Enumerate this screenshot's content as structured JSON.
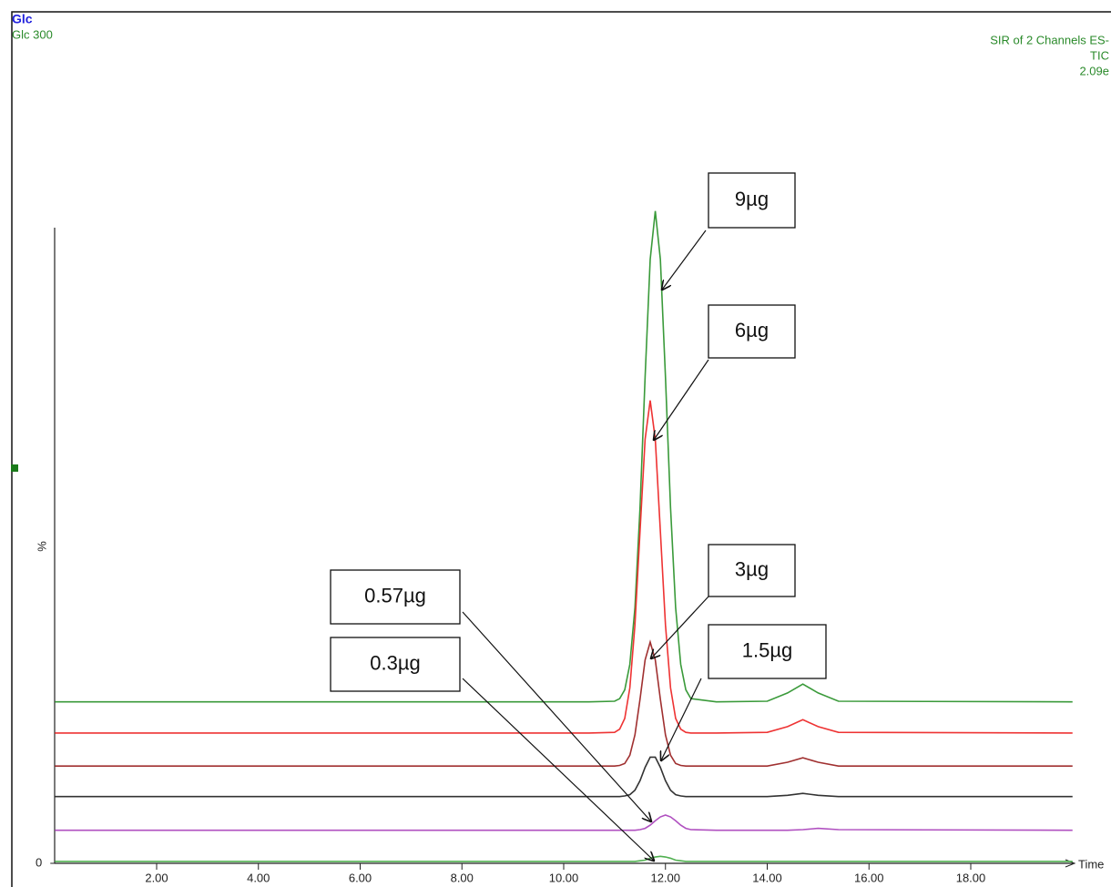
{
  "chart_data": {
    "type": "line",
    "header_left": [
      "Glc",
      "Glc 300"
    ],
    "header_right": [
      "SIR of 2 Channels ES-",
      "TIC",
      "2.09e"
    ],
    "ylabel": "%",
    "xlabel": "Time",
    "xlim": [
      0,
      20
    ],
    "ylim": [
      0,
      105
    ],
    "xticks": [
      {
        "value": 2,
        "label": "2.00"
      },
      {
        "value": 4,
        "label": "4.00"
      },
      {
        "value": 6,
        "label": "6.00"
      },
      {
        "value": 8,
        "label": "8.00"
      },
      {
        "value": 10,
        "label": "10.00"
      },
      {
        "value": 12,
        "label": "12.00"
      },
      {
        "value": 14,
        "label": "14.00"
      },
      {
        "value": 16,
        "label": "16.00"
      },
      {
        "value": 18,
        "label": "18.00"
      }
    ],
    "yticks": [
      0
    ],
    "x": [
      0,
      10.5,
      11.0,
      11.1,
      11.2,
      11.3,
      11.4,
      11.5,
      11.6,
      11.7,
      11.8,
      11.9,
      12.0,
      12.1,
      12.2,
      12.3,
      12.4,
      12.5,
      13.0,
      14.0,
      14.4,
      14.7,
      15.0,
      15.4,
      20
    ],
    "series": [
      {
        "color": "#3a9a3a",
        "values": [
          25.4,
          25.4,
          25.5,
          25.9,
          27.3,
          31.3,
          40.2,
          55.9,
          76.5,
          95.0,
          102.6,
          95.0,
          76.5,
          55.9,
          40.2,
          31.3,
          27.3,
          25.9,
          25.4,
          25.5,
          26.8,
          28.2,
          26.8,
          25.5,
          25.4
        ]
      },
      {
        "color": "#ee3333",
        "values": [
          20.5,
          20.5,
          20.6,
          21.1,
          22.8,
          27.6,
          37.5,
          52.2,
          66.7,
          72.8,
          66.7,
          52.2,
          37.5,
          27.6,
          22.8,
          21.1,
          20.6,
          20.5,
          20.5,
          20.6,
          21.5,
          22.6,
          21.5,
          20.6,
          20.5
        ]
      },
      {
        "color": "#a03030",
        "values": [
          15.3,
          15.3,
          15.3,
          15.4,
          15.7,
          17.0,
          20.2,
          25.8,
          32.0,
          34.8,
          32.0,
          25.8,
          20.2,
          17.0,
          15.7,
          15.4,
          15.3,
          15.3,
          15.3,
          15.3,
          15.9,
          16.6,
          15.9,
          15.3,
          15.3
        ]
      },
      {
        "color": "#333333",
        "values": [
          10.5,
          10.5,
          10.5,
          10.5,
          10.6,
          10.8,
          11.5,
          13.0,
          15.1,
          16.7,
          16.7,
          15.1,
          13.0,
          11.5,
          10.8,
          10.6,
          10.5,
          10.5,
          10.5,
          10.5,
          10.7,
          11.0,
          10.7,
          10.5,
          10.5
        ]
      },
      {
        "color": "#b050c0",
        "values": [
          5.2,
          5.2,
          5.2,
          5.2,
          5.2,
          5.2,
          5.2,
          5.3,
          5.5,
          6.0,
          6.7,
          7.3,
          7.6,
          7.3,
          6.7,
          6.0,
          5.5,
          5.3,
          5.2,
          5.2,
          5.2,
          5.3,
          5.5,
          5.3,
          5.2
        ]
      },
      {
        "color": "#50b050",
        "values": [
          0.3,
          0.3,
          0.3,
          0.3,
          0.3,
          0.3,
          0.3,
          0.4,
          0.5,
          0.8,
          1.0,
          1.1,
          1.0,
          0.8,
          0.5,
          0.4,
          0.3,
          0.3,
          0.3,
          0.3,
          0.3,
          0.3,
          0.3,
          0.3,
          0.3
        ]
      }
    ],
    "annotations": [
      "9µg",
      "6µg",
      "3µg",
      "1.5µg",
      "0.57µg",
      "0.3µg"
    ]
  }
}
